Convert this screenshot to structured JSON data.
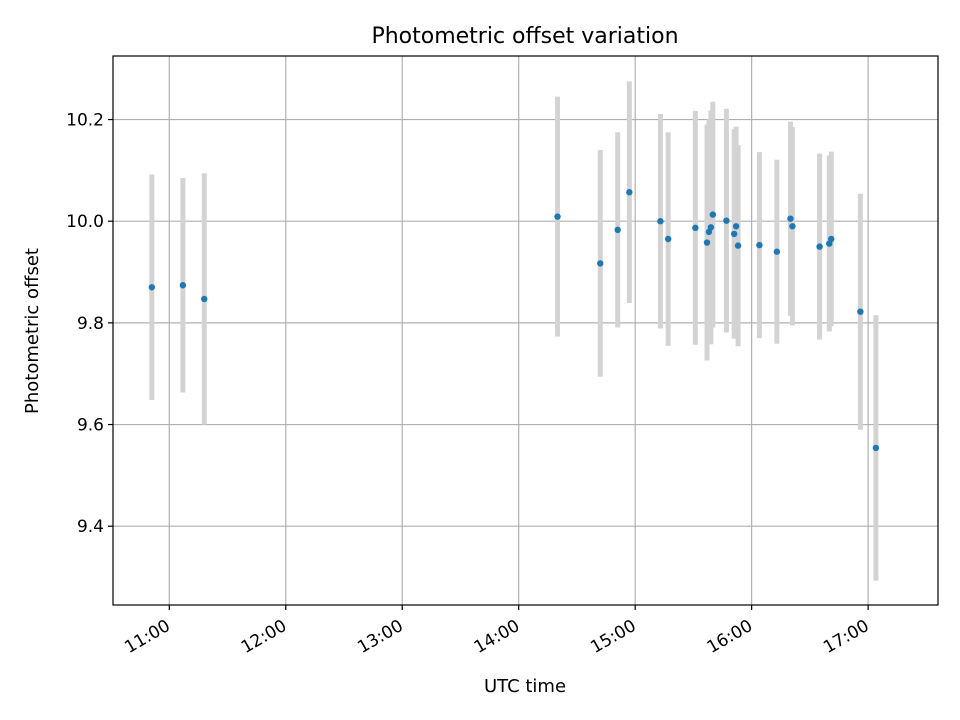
{
  "chart_data": {
    "type": "scatter",
    "title": "Photometric offset variation",
    "xlabel": "UTC time",
    "ylabel": "Photometric offset",
    "grid": true,
    "x_ticks": [
      "11:00",
      "12:00",
      "13:00",
      "14:00",
      "15:00",
      "16:00",
      "17:00"
    ],
    "y_ticks": [
      "9.4",
      "9.6",
      "9.8",
      "10.0",
      "10.2"
    ],
    "xlim": [
      "10:31",
      "17:36"
    ],
    "ylim": [
      9.245,
      10.325
    ],
    "colors": {
      "points": "#1f77b4",
      "errorbars": "#d3d3d3",
      "grid": "#b0b0b0",
      "axes": "#000000"
    },
    "series": [
      {
        "points": [
          {
            "x": "10:51",
            "y": 9.87,
            "err": 0.222
          },
          {
            "x": "11:07",
            "y": 9.874,
            "err": 0.211
          },
          {
            "x": "11:18",
            "y": 9.847,
            "err": 0.247
          },
          {
            "x": "14:20",
            "y": 10.009,
            "err": 0.236
          },
          {
            "x": "14:42",
            "y": 9.917,
            "err": 0.223
          },
          {
            "x": "14:51",
            "y": 9.983,
            "err": 0.192
          },
          {
            "x": "14:57",
            "y": 10.057,
            "err": 0.218
          },
          {
            "x": "15:13",
            "y": 10.0,
            "err": 0.211
          },
          {
            "x": "15:17",
            "y": 9.965,
            "err": 0.21
          },
          {
            "x": "15:31",
            "y": 9.987,
            "err": 0.23
          },
          {
            "x": "15:37",
            "y": 9.958,
            "err": 0.232
          },
          {
            "x": "15:38",
            "y": 9.979,
            "err": 0.221
          },
          {
            "x": "15:39",
            "y": 9.988,
            "err": 0.23
          },
          {
            "x": "15:40",
            "y": 10.013,
            "err": 0.222
          },
          {
            "x": "15:47",
            "y": 10.001,
            "err": 0.22
          },
          {
            "x": "15:51",
            "y": 9.975,
            "err": 0.206
          },
          {
            "x": "15:52",
            "y": 9.99,
            "err": 0.196
          },
          {
            "x": "15:53",
            "y": 9.952,
            "err": 0.198
          },
          {
            "x": "16:04",
            "y": 9.953,
            "err": 0.183
          },
          {
            "x": "16:13",
            "y": 9.94,
            "err": 0.181
          },
          {
            "x": "16:20",
            "y": 10.005,
            "err": 0.191
          },
          {
            "x": "16:21",
            "y": 9.99,
            "err": 0.195
          },
          {
            "x": "16:35",
            "y": 9.95,
            "err": 0.183
          },
          {
            "x": "16:40",
            "y": 9.956,
            "err": 0.173
          },
          {
            "x": "16:41",
            "y": 9.965,
            "err": 0.172
          },
          {
            "x": "16:56",
            "y": 9.822,
            "err": 0.232
          },
          {
            "x": "17:04",
            "y": 9.554,
            "err": 0.261
          }
        ]
      }
    ]
  }
}
